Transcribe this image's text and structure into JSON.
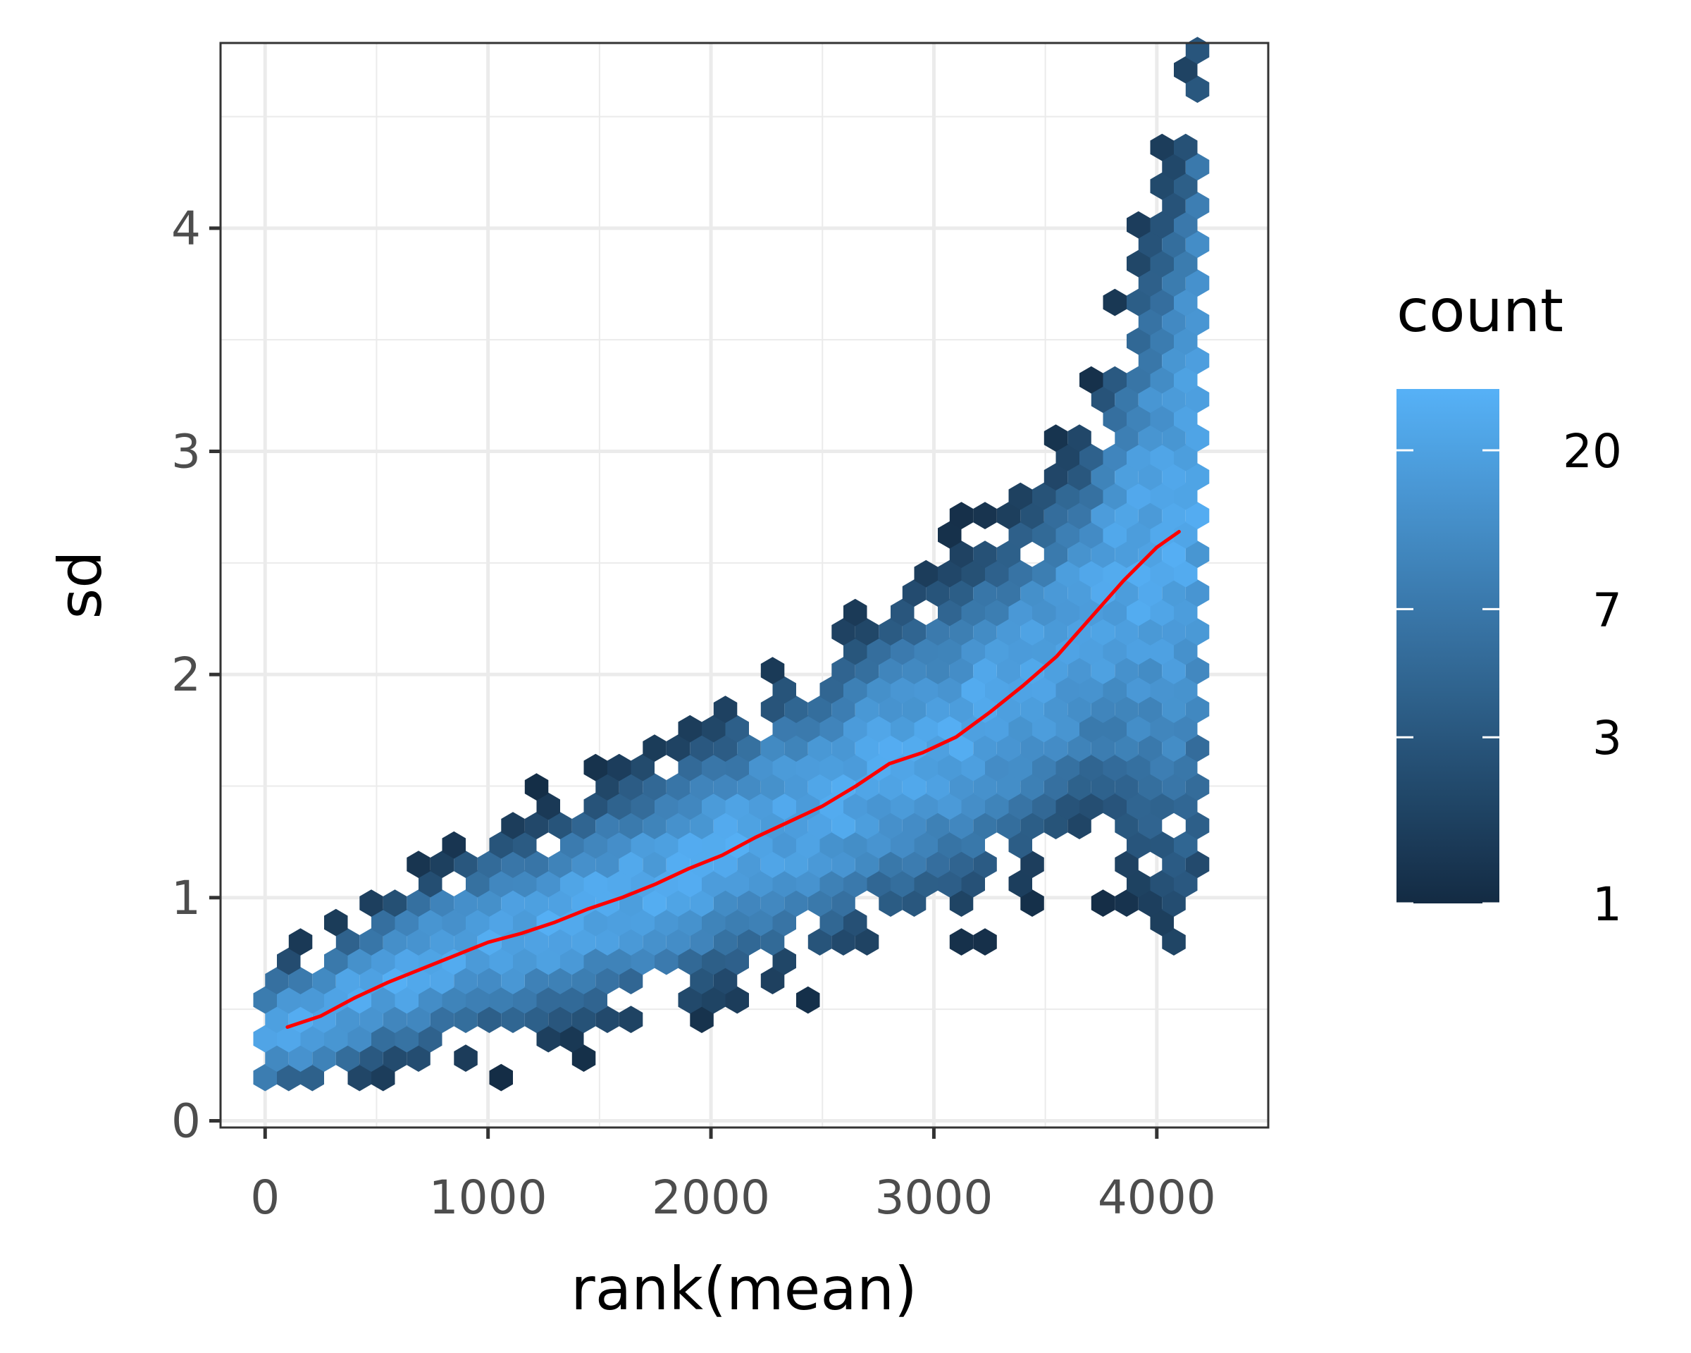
{
  "chart_data": {
    "type": "hexbin",
    "xlabel": "rank(mean)",
    "ylabel": "sd",
    "xlim": [
      -200,
      4500
    ],
    "ylim": [
      -0.03,
      4.83
    ],
    "x_ticks": [
      0,
      1000,
      2000,
      3000,
      4000
    ],
    "x_tick_labels": [
      "0",
      "1000",
      "2000",
      "3000",
      "4000"
    ],
    "y_ticks": [
      0,
      1,
      2,
      3,
      4
    ],
    "y_tick_labels": [
      "0",
      "1",
      "2",
      "3",
      "4"
    ],
    "grid": true,
    "legend": {
      "title": "count",
      "position": "right",
      "scale": "log",
      "range": [
        1,
        30
      ],
      "breaks": [
        1,
        3,
        7,
        20
      ],
      "break_labels": [
        "1",
        "3",
        "7",
        "20"
      ],
      "low_color": "#132b43",
      "high_color": "#56b1f7"
    },
    "trend_line": {
      "color": "#ff0000",
      "points": [
        [
          100,
          0.42
        ],
        [
          250,
          0.47
        ],
        [
          400,
          0.55
        ],
        [
          550,
          0.62
        ],
        [
          700,
          0.68
        ],
        [
          850,
          0.74
        ],
        [
          1000,
          0.8
        ],
        [
          1150,
          0.84
        ],
        [
          1300,
          0.89
        ],
        [
          1450,
          0.95
        ],
        [
          1600,
          1.0
        ],
        [
          1750,
          1.06
        ],
        [
          1900,
          1.13
        ],
        [
          2050,
          1.19
        ],
        [
          2200,
          1.27
        ],
        [
          2350,
          1.34
        ],
        [
          2500,
          1.41
        ],
        [
          2650,
          1.5
        ],
        [
          2800,
          1.6
        ],
        [
          2950,
          1.65
        ],
        [
          3100,
          1.72
        ],
        [
          3250,
          1.83
        ],
        [
          3400,
          1.95
        ],
        [
          3550,
          2.08
        ],
        [
          3700,
          2.25
        ],
        [
          3850,
          2.42
        ],
        [
          4000,
          2.57
        ],
        [
          4100,
          2.64
        ]
      ]
    }
  }
}
